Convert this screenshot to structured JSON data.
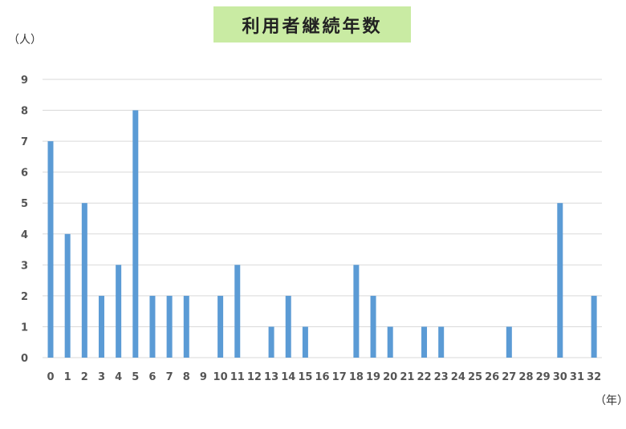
{
  "chart_data": {
    "type": "bar",
    "title": "利用者継続年数",
    "ylabel": "（人）",
    "xlabel": "（年）",
    "categories": [
      "0",
      "1",
      "2",
      "3",
      "4",
      "5",
      "6",
      "7",
      "8",
      "9",
      "10",
      "11",
      "12",
      "13",
      "14",
      "15",
      "16",
      "17",
      "18",
      "19",
      "20",
      "21",
      "22",
      "23",
      "24",
      "25",
      "26",
      "27",
      "28",
      "29",
      "30",
      "31",
      "32"
    ],
    "values": [
      7,
      4,
      5,
      2,
      3,
      8,
      2,
      2,
      2,
      0,
      2,
      3,
      0,
      1,
      2,
      1,
      0,
      0,
      3,
      2,
      1,
      0,
      1,
      1,
      0,
      0,
      0,
      1,
      0,
      0,
      5,
      0,
      2
    ],
    "ylim": [
      0,
      9
    ],
    "yticks": [
      "0",
      "1",
      "2",
      "3",
      "4",
      "5",
      "6",
      "7",
      "8",
      "9"
    ],
    "grid": true,
    "legend": "none",
    "colors": {
      "bar": "#5b9bd5",
      "grid": "#d9d9d9",
      "title_bg": "#c9eba3"
    }
  }
}
